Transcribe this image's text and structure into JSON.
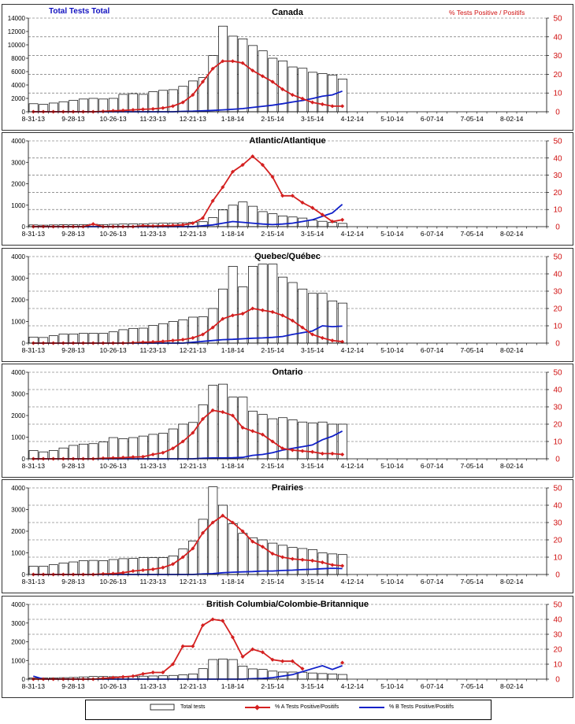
{
  "header": {
    "left_title": "Total Tests Total",
    "right_title": "% Tests Positive / Positifs",
    "left_color": "#1010c0",
    "right_color": "#d01010"
  },
  "colors": {
    "bar_fill": "#ffffff",
    "bar_stroke": "#000000",
    "series_a": "#d42020",
    "series_b": "#1020c8",
    "axis_right": "#d01010"
  },
  "legend": {
    "total": "Total tests",
    "a": "% A Tests Positive/Positifs",
    "b": "% B Tests Positive/Positifs"
  },
  "chart_data": [
    {
      "type": "bar",
      "title": "Canada",
      "x_tick_labels": [
        "8-31-13",
        "9-28-13",
        "10-26-13",
        "11-23-13",
        "12-21-13",
        "1-18-14",
        "2-15-14",
        "3-15-14",
        "4-12-14",
        "5-10-14",
        "6-07-14",
        "7-05-14",
        "8-02-14"
      ],
      "y_left_ticks": [
        0,
        2000,
        4000,
        6000,
        8000,
        10000,
        12000,
        14000
      ],
      "y_right_ticks": [
        0,
        10,
        20,
        30,
        40,
        50
      ],
      "ylim_left": [
        0,
        14000
      ],
      "ylim_right": [
        0,
        50
      ],
      "series": [
        {
          "name": "Total tests",
          "values": [
            1200,
            1100,
            1300,
            1500,
            1700,
            1900,
            2000,
            1900,
            2000,
            2600,
            2700,
            2600,
            3000,
            3200,
            3300,
            3800,
            4600,
            5100,
            8400,
            12800,
            11300,
            10900,
            9900,
            9100,
            8000,
            7600,
            6700,
            6500,
            5900,
            5700,
            5500,
            4900
          ]
        },
        {
          "name": "% A Tests Positive/Positifs",
          "values": [
            0,
            0,
            0,
            0,
            0,
            0,
            0,
            0.2,
            0.5,
            0.7,
            1,
            1.3,
            1.5,
            2,
            3,
            5,
            9,
            16,
            23,
            27,
            27,
            26,
            22,
            19,
            16,
            12,
            9,
            7,
            5,
            4,
            3,
            3
          ]
        },
        {
          "name": "% B Tests Positive/Positifs",
          "values": [
            0,
            0,
            0,
            0,
            0,
            0,
            0,
            0,
            0,
            0,
            0,
            0,
            0,
            0,
            0,
            0.2,
            0.3,
            0.5,
            0.7,
            1,
            1.3,
            1.7,
            2.3,
            2.9,
            3.5,
            4.3,
            5.2,
            6,
            7,
            8.3,
            9,
            11
          ]
        }
      ]
    },
    {
      "type": "bar",
      "title": "Atlantic/Atlantique",
      "x_tick_labels": [
        "8-31-13",
        "9-28-13",
        "10-26-13",
        "11-23-13",
        "12-21-13",
        "1-18-14",
        "2-15-14",
        "3-15-14",
        "4-12-14",
        "5-10-14",
        "6-07-14",
        "7-05-14",
        "8-02-14"
      ],
      "y_left_ticks": [
        0,
        1000,
        2000,
        3000,
        4000
      ],
      "y_right_ticks": [
        0,
        10,
        20,
        30,
        40,
        50
      ],
      "ylim_left": [
        0,
        4000
      ],
      "ylim_right": [
        0,
        50
      ],
      "series": [
        {
          "name": "Total tests",
          "values": [
            80,
            70,
            80,
            90,
            90,
            100,
            110,
            100,
            110,
            120,
            130,
            130,
            150,
            160,
            170,
            180,
            200,
            230,
            420,
            780,
            1000,
            1150,
            950,
            700,
            600,
            500,
            450,
            400,
            300,
            250,
            200,
            150
          ]
        },
        {
          "name": "% A Tests Positive/Positifs",
          "values": [
            0,
            0,
            0,
            0,
            0,
            0,
            1.5,
            0,
            0,
            0,
            0,
            0.5,
            0.3,
            0.5,
            0.7,
            1,
            2,
            5,
            15,
            23,
            32,
            36,
            41,
            36,
            29,
            18,
            18,
            14,
            11,
            7,
            3,
            4
          ]
        },
        {
          "name": "% B Tests Positive/Positifs",
          "values": [
            0,
            0,
            0,
            0,
            0,
            0,
            0,
            0,
            0,
            0,
            0,
            0,
            0,
            0,
            0,
            0,
            0,
            0.5,
            1,
            2,
            3,
            2.5,
            2,
            1.5,
            1.2,
            1.5,
            2,
            3,
            4,
            6,
            8,
            13
          ]
        }
      ]
    },
    {
      "type": "bar",
      "title": "Quebec/Québec",
      "x_tick_labels": [
        "8-31-13",
        "9-28-13",
        "10-26-13",
        "11-23-13",
        "12-21-13",
        "1-18-14",
        "2-15-14",
        "3-15-14",
        "4-12-14",
        "5-10-14",
        "6-07-14",
        "7-05-14",
        "8-02-14"
      ],
      "y_left_ticks": [
        0,
        1000,
        2000,
        3000,
        4000
      ],
      "y_right_ticks": [
        0,
        10,
        20,
        30,
        40,
        50
      ],
      "ylim_left": [
        0,
        4000
      ],
      "ylim_right": [
        0,
        50
      ],
      "series": [
        {
          "name": "Total tests",
          "values": [
            280,
            260,
            340,
            420,
            420,
            450,
            460,
            450,
            520,
            620,
            680,
            690,
            820,
            900,
            1000,
            1080,
            1200,
            1220,
            1600,
            2500,
            3550,
            2600,
            3550,
            3650,
            3650,
            3050,
            2800,
            2500,
            2300,
            2300,
            1950,
            1850
          ]
        },
        {
          "name": "% A Tests Positive/Positifs",
          "values": [
            0,
            0,
            0,
            0,
            0,
            0,
            0,
            0,
            0,
            0,
            0.2,
            0.5,
            0.7,
            1,
            1.5,
            2,
            3,
            5,
            9,
            14,
            16,
            17,
            20,
            19,
            18,
            16,
            13,
            9,
            5,
            3,
            1.5,
            0.8
          ]
        },
        {
          "name": "% B Tests Positive/Positifs",
          "values": [
            0,
            0,
            0,
            0,
            0,
            0,
            0,
            0,
            0,
            0,
            0,
            0,
            0,
            0,
            0,
            0,
            0.5,
            1,
            1.5,
            2,
            2.2,
            2.5,
            2.8,
            3,
            3.3,
            3.8,
            5,
            6,
            7,
            10,
            9.5,
            9.8
          ]
        }
      ]
    },
    {
      "type": "bar",
      "title": "Ontario",
      "x_tick_labels": [
        "8-31-13",
        "9-28-13",
        "10-26-13",
        "11-23-13",
        "12-21-13",
        "1-18-14",
        "2-15-14",
        "3-15-14",
        "4-12-14",
        "5-10-14",
        "6-07-14",
        "7-05-14",
        "8-02-14"
      ],
      "y_left_ticks": [
        0,
        1000,
        2000,
        3000,
        4000
      ],
      "y_right_ticks": [
        0,
        10,
        20,
        30,
        40,
        50
      ],
      "ylim_left": [
        0,
        4000
      ],
      "ylim_right": [
        0,
        50
      ],
      "series": [
        {
          "name": "Total tests",
          "values": [
            380,
            320,
            380,
            500,
            620,
            680,
            700,
            780,
            980,
            930,
            980,
            1050,
            1130,
            1180,
            1380,
            1600,
            1680,
            2500,
            3400,
            3450,
            2850,
            2850,
            2200,
            2050,
            1850,
            1900,
            1800,
            1700,
            1650,
            1700,
            1600,
            1600
          ]
        },
        {
          "name": "% A Tests Positive/Positifs",
          "values": [
            0,
            0,
            0,
            0,
            0,
            0,
            0,
            0.3,
            0.5,
            0.7,
            1,
            1.2,
            2.5,
            3.5,
            6,
            10,
            15,
            23,
            28,
            27,
            25,
            18,
            16,
            14,
            10,
            6,
            5,
            4.5,
            4,
            3,
            3,
            2.5
          ]
        },
        {
          "name": "% B Tests Positive/Positifs",
          "values": [
            0,
            0,
            0,
            0,
            0,
            0,
            0,
            0,
            0,
            0,
            0,
            0,
            0,
            0,
            0,
            0,
            0,
            0.3,
            0.5,
            0.5,
            0.6,
            0.8,
            2,
            2.5,
            3.5,
            5,
            6,
            7,
            8,
            11,
            13,
            16
          ]
        }
      ]
    },
    {
      "type": "bar",
      "title": "Prairies",
      "x_tick_labels": [
        "8-31-13",
        "9-28-13",
        "10-26-13",
        "11-23-13",
        "12-21-13",
        "1-18-14",
        "2-15-14",
        "3-15-14",
        "4-12-14",
        "5-10-14",
        "6-07-14",
        "7-05-14",
        "8-02-14"
      ],
      "y_left_ticks": [
        0,
        1000,
        2000,
        3000,
        4000
      ],
      "y_right_ticks": [
        0,
        10,
        20,
        30,
        40,
        50
      ],
      "ylim_left": [
        0,
        4000
      ],
      "ylim_right": [
        0,
        50
      ],
      "series": [
        {
          "name": "Total tests",
          "values": [
            380,
            380,
            450,
            530,
            580,
            640,
            650,
            640,
            690,
            730,
            740,
            780,
            780,
            780,
            860,
            1180,
            1550,
            2550,
            4050,
            3200,
            2350,
            1900,
            1700,
            1600,
            1450,
            1350,
            1250,
            1200,
            1150,
            1000,
            950,
            920
          ]
        },
        {
          "name": "% A Tests Positive/Positifs",
          "values": [
            0,
            0,
            0,
            0,
            0,
            0,
            0,
            0.3,
            0.5,
            1,
            2,
            2.5,
            3,
            4,
            6,
            10,
            15,
            24,
            30,
            34,
            30,
            25,
            19,
            16,
            12,
            10,
            9,
            8.5,
            8,
            7,
            5.5,
            5
          ]
        },
        {
          "name": "% B Tests Positive/Positifs",
          "values": [
            0,
            0,
            0,
            0,
            0,
            0,
            0,
            0,
            0,
            0,
            0,
            0,
            0,
            0,
            0,
            0,
            0,
            0.3,
            0.5,
            1,
            1.3,
            1.5,
            1.7,
            2,
            2,
            2.3,
            2.5,
            2.8,
            3,
            3.3,
            3.6,
            3.4
          ]
        }
      ]
    },
    {
      "type": "bar",
      "title": "British Columbia/Colombie-Britannique",
      "x_tick_labels": [
        "8-31-13",
        "9-28-13",
        "10-26-13",
        "11-23-13",
        "12-21-13",
        "1-18-14",
        "2-15-14",
        "3-15-14",
        "4-12-14",
        "5-10-14",
        "6-07-14",
        "7-05-14",
        "8-02-14"
      ],
      "y_left_ticks": [
        0,
        1000,
        2000,
        3000,
        4000
      ],
      "y_right_ticks": [
        0,
        10,
        20,
        30,
        40,
        50
      ],
      "ylim_left": [
        0,
        4000
      ],
      "ylim_right": [
        0,
        50
      ],
      "series": [
        {
          "name": "Total tests",
          "values": [
            60,
            60,
            70,
            80,
            90,
            120,
            140,
            140,
            130,
            140,
            150,
            160,
            170,
            180,
            200,
            230,
            280,
            560,
            1050,
            1080,
            1050,
            700,
            550,
            520,
            430,
            380,
            380,
            370,
            330,
            300,
            280,
            250
          ]
        },
        {
          "name": "% A Tests Positive/Positifs",
          "values": [
            0,
            0,
            0,
            0,
            0,
            0,
            0,
            0.5,
            1,
            1.5,
            2,
            3.5,
            4.5,
            4.5,
            10,
            22,
            22,
            36,
            40,
            39,
            28,
            15,
            20,
            18,
            13,
            12,
            12,
            7,
            null,
            null,
            null,
            11
          ]
        },
        {
          "name": "% B Tests Positive/Positifs",
          "values": [
            2,
            0,
            0,
            0,
            0,
            0,
            0,
            0,
            0,
            0,
            0,
            0,
            0,
            0,
            0,
            0,
            0,
            0,
            0,
            0,
            0,
            0,
            0.3,
            0.5,
            1,
            2,
            3,
            5,
            7,
            9,
            6.5,
            9
          ]
        }
      ]
    }
  ]
}
